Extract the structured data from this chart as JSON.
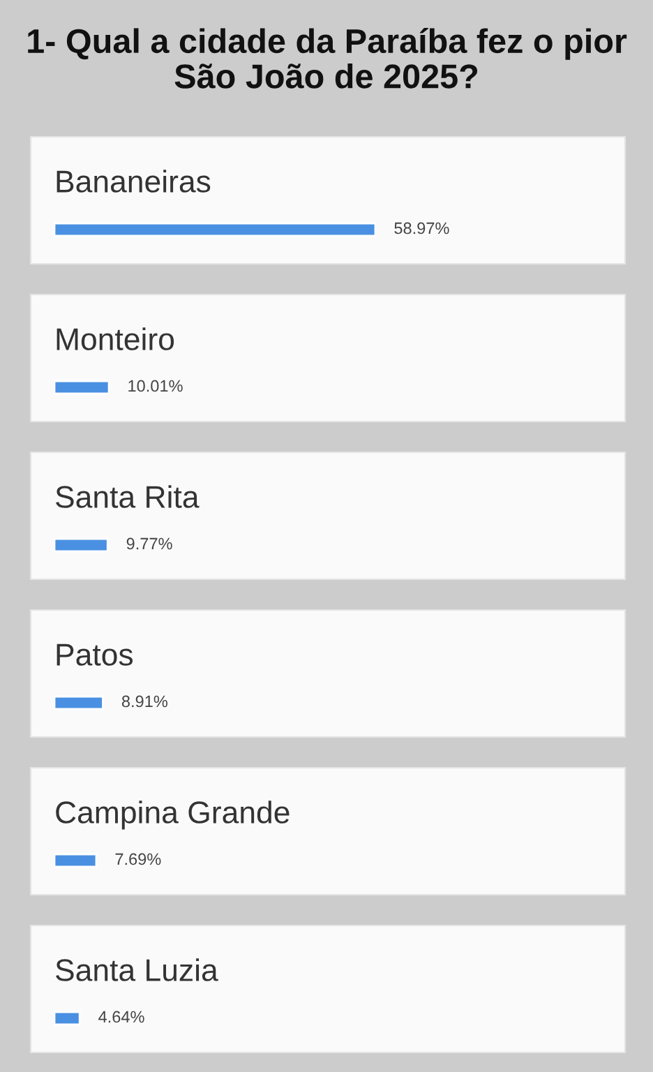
{
  "chart_data": {
    "type": "bar",
    "orientation": "horizontal",
    "title": "1- Qual a cidade da Paraíba fez o pior São João de 2025?",
    "categories": [
      "Bananeiras",
      "Monteiro",
      "Santa Rita",
      "Patos",
      "Campina Grande",
      "Santa Luzia"
    ],
    "values": [
      58.97,
      10.01,
      9.77,
      8.91,
      7.69,
      4.64
    ],
    "value_labels": [
      "58.97%",
      "10.01%",
      "9.77%",
      "8.91%",
      "7.69%",
      "4.64%"
    ],
    "color": "#4a90e2",
    "tick_labels": false
  }
}
